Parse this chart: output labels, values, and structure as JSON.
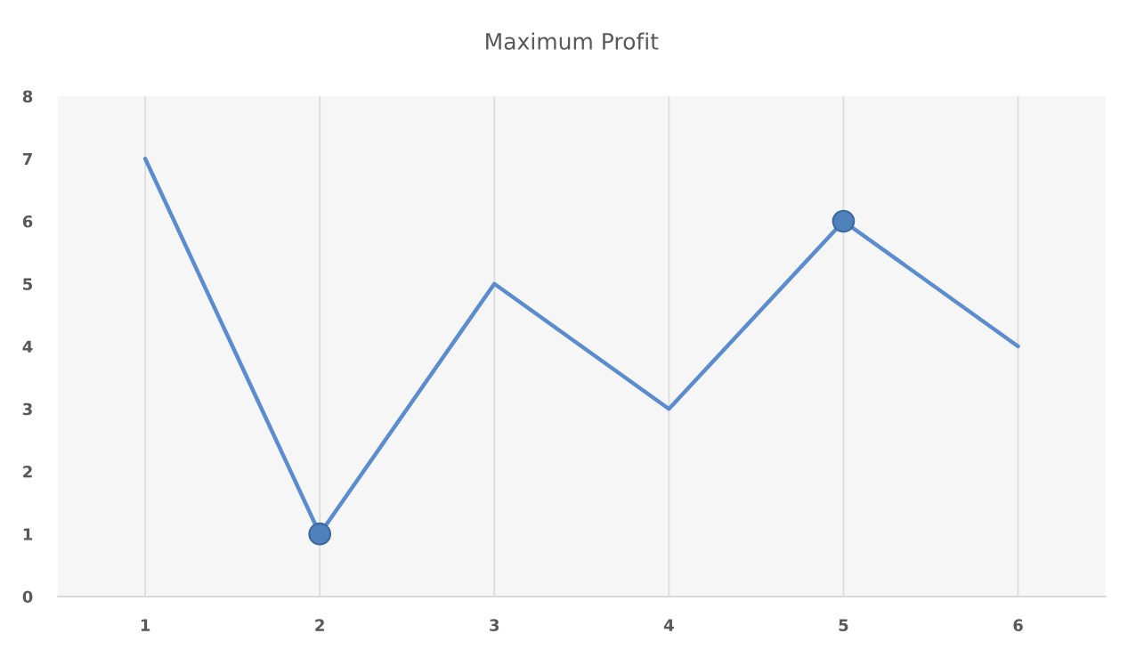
{
  "chart_data": {
    "type": "line",
    "title": "Maximum Profit",
    "categories": [
      "1",
      "2",
      "3",
      "4",
      "5",
      "6"
    ],
    "ylim": [
      0,
      8
    ],
    "yticks": [
      0,
      1,
      2,
      3,
      4,
      5,
      6,
      7,
      8
    ],
    "grid": "x",
    "series": [
      {
        "color": "#5b8cd0",
        "marker": "none",
        "line_style": "solid",
        "values": [
          7,
          1,
          5,
          3,
          6,
          4
        ]
      },
      {
        "type": "scatter",
        "color": "#4f81bd",
        "marker": "circle",
        "x": [
          "2",
          "5"
        ],
        "values": [
          1,
          6
        ]
      }
    ]
  }
}
